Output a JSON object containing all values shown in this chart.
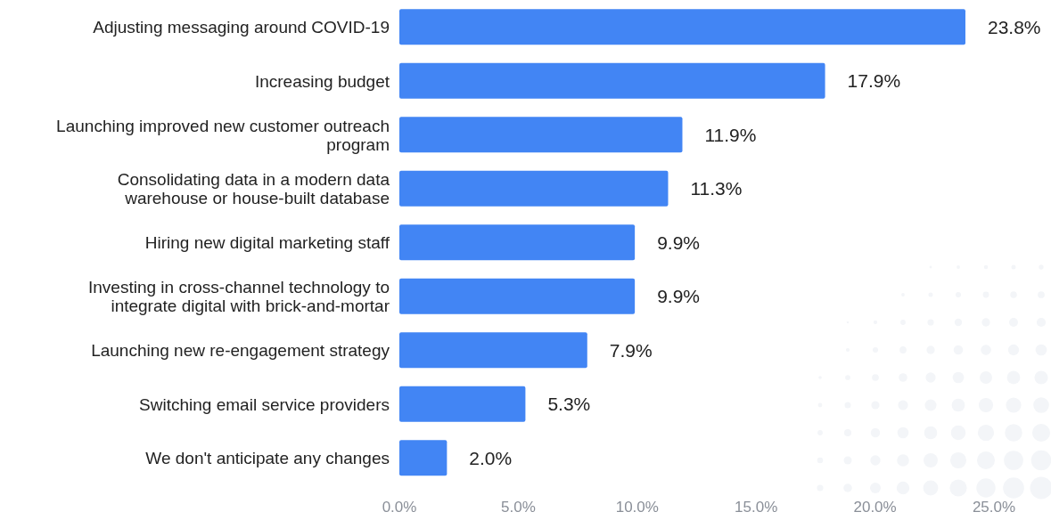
{
  "chart_data": {
    "type": "bar",
    "orientation": "horizontal",
    "categories": [
      "Adjusting messaging around COVID-19",
      "Increasing budget",
      "Launching improved new customer outreach program",
      "Consolidating data in a modern data warehouse or house-built database",
      "Hiring new digital marketing staff",
      "Investing in cross-channel technology to integrate digital with brick-and-mortar",
      "Launching new re-engagement strategy",
      "Switching email service providers",
      "We don't anticipate any changes"
    ],
    "values": [
      23.8,
      17.9,
      11.9,
      11.3,
      9.9,
      9.9,
      7.9,
      5.3,
      2.0
    ],
    "value_labels": [
      "23.8%",
      "17.9%",
      "11.9%",
      "11.3%",
      "9.9%",
      "9.9%",
      "7.9%",
      "5.3%",
      "2.0%"
    ],
    "color": "#4285f4",
    "xlim": [
      0,
      25
    ],
    "xticks": [
      {
        "value": 0,
        "label": "0.0%"
      },
      {
        "value": 5,
        "label": "5.0%"
      },
      {
        "value": 10,
        "label": "10.0%"
      },
      {
        "value": 15,
        "label": "15.0%"
      },
      {
        "value": 20,
        "label": "20.0%"
      },
      {
        "value": 25,
        "label": "25.0%"
      }
    ],
    "grid": false
  }
}
